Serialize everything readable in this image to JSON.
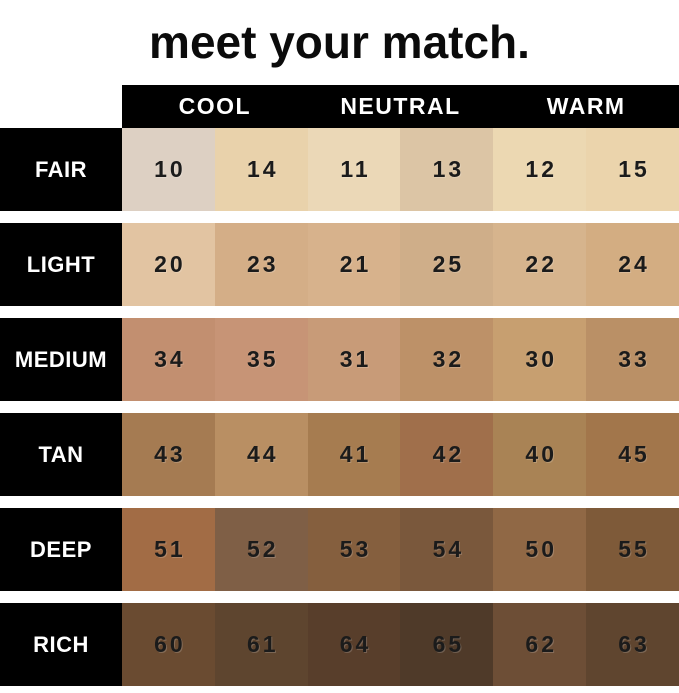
{
  "title": "meet your match.",
  "header": {
    "column_groups": [
      {
        "label": "COOL"
      },
      {
        "label": "NEUTRAL"
      },
      {
        "label": "WARM"
      }
    ]
  },
  "colors": {
    "background": "#ffffff",
    "header_bg": "#000000",
    "header_text": "#ffffff",
    "label_bg": "#000000",
    "label_text": "#ffffff",
    "number_text": "#1b1b1b"
  },
  "chart_data": {
    "type": "table",
    "title": "meet your match.",
    "column_groups": [
      "COOL",
      "NEUTRAL",
      "WARM"
    ],
    "columns_per_group": 2,
    "row_labels": [
      "FAIR",
      "LIGHT",
      "MEDIUM",
      "TAN",
      "DEEP",
      "RICH"
    ],
    "rows": [
      {
        "label": "FAIR",
        "swatches": [
          {
            "shade": "10",
            "tone": "COOL",
            "color": "#ddd0c3"
          },
          {
            "shade": "14",
            "tone": "COOL",
            "color": "#e9d2ab"
          },
          {
            "shade": "11",
            "tone": "NEUTRAL",
            "color": "#ebd8b7"
          },
          {
            "shade": "13",
            "tone": "NEUTRAL",
            "color": "#dcc5a5"
          },
          {
            "shade": "12",
            "tone": "WARM",
            "color": "#ecd8b2"
          },
          {
            "shade": "15",
            "tone": "WARM",
            "color": "#ebd4ac"
          }
        ]
      },
      {
        "label": "LIGHT",
        "swatches": [
          {
            "shade": "20",
            "tone": "COOL",
            "color": "#e2c4a2"
          },
          {
            "shade": "23",
            "tone": "COOL",
            "color": "#d4ae87"
          },
          {
            "shade": "21",
            "tone": "NEUTRAL",
            "color": "#d7b28c"
          },
          {
            "shade": "25",
            "tone": "NEUTRAL",
            "color": "#cfae89"
          },
          {
            "shade": "22",
            "tone": "WARM",
            "color": "#d6b48d"
          },
          {
            "shade": "24",
            "tone": "WARM",
            "color": "#d3ad82"
          }
        ]
      },
      {
        "label": "MEDIUM",
        "swatches": [
          {
            "shade": "34",
            "tone": "COOL",
            "color": "#c28f70"
          },
          {
            "shade": "35",
            "tone": "COOL",
            "color": "#c79476"
          },
          {
            "shade": "31",
            "tone": "NEUTRAL",
            "color": "#c89b78"
          },
          {
            "shade": "32",
            "tone": "NEUTRAL",
            "color": "#bd9168"
          },
          {
            "shade": "30",
            "tone": "WARM",
            "color": "#c79f70"
          },
          {
            "shade": "33",
            "tone": "WARM",
            "color": "#ba9066"
          }
        ]
      },
      {
        "label": "TAN",
        "swatches": [
          {
            "shade": "43",
            "tone": "COOL",
            "color": "#a57b52"
          },
          {
            "shade": "44",
            "tone": "COOL",
            "color": "#b98f63"
          },
          {
            "shade": "41",
            "tone": "NEUTRAL",
            "color": "#a67c50"
          },
          {
            "shade": "42",
            "tone": "NEUTRAL",
            "color": "#a06f4b"
          },
          {
            "shade": "40",
            "tone": "WARM",
            "color": "#a98355"
          },
          {
            "shade": "45",
            "tone": "WARM",
            "color": "#a2764b"
          }
        ]
      },
      {
        "label": "DEEP",
        "swatches": [
          {
            "shade": "51",
            "tone": "COOL",
            "color": "#a26c45"
          },
          {
            "shade": "52",
            "tone": "COOL",
            "color": "#7f5f46"
          },
          {
            "shade": "53",
            "tone": "NEUTRAL",
            "color": "#855f3e"
          },
          {
            "shade": "54",
            "tone": "NEUTRAL",
            "color": "#7a583c"
          },
          {
            "shade": "50",
            "tone": "WARM",
            "color": "#906845"
          },
          {
            "shade": "55",
            "tone": "WARM",
            "color": "#7e5a39"
          }
        ]
      },
      {
        "label": "RICH",
        "swatches": [
          {
            "shade": "60",
            "tone": "COOL",
            "color": "#6a4b31"
          },
          {
            "shade": "61",
            "tone": "COOL",
            "color": "#5e452f"
          },
          {
            "shade": "64",
            "tone": "NEUTRAL",
            "color": "#583e2b"
          },
          {
            "shade": "65",
            "tone": "NEUTRAL",
            "color": "#4f3a29"
          },
          {
            "shade": "62",
            "tone": "WARM",
            "color": "#6d4e36"
          },
          {
            "shade": "63",
            "tone": "WARM",
            "color": "#5f452f"
          }
        ]
      }
    ]
  }
}
